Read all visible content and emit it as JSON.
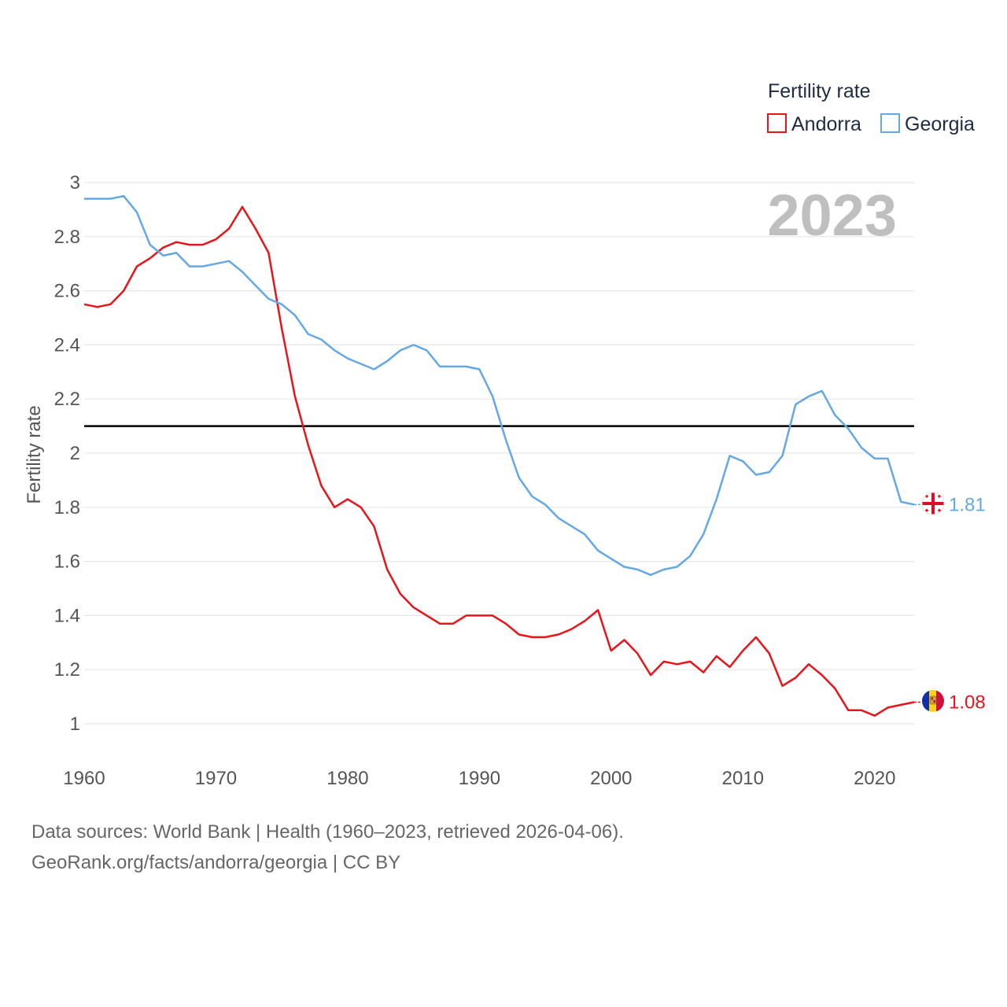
{
  "chart_data": {
    "type": "line",
    "ylabel": "Fertility rate",
    "xlabel": "",
    "xlim": [
      1960,
      2023
    ],
    "ylim": [
      0.9,
      3
    ],
    "x_ticks": [
      1960,
      1970,
      1980,
      1990,
      2000,
      2010,
      2020
    ],
    "y_ticks": [
      1,
      1.2,
      1.4,
      1.6,
      1.8,
      2,
      2.2,
      2.4,
      2.6,
      2.8,
      3
    ],
    "x_tick_labels": [
      "1960",
      "1970",
      "1980",
      "1990",
      "2000",
      "2010",
      "2020"
    ],
    "y_tick_labels": [
      "1",
      "1.2",
      "1.4",
      "1.6",
      "1.8",
      "2",
      "2.2",
      "2.4",
      "2.6",
      "2.8",
      "3"
    ],
    "reference_line": 2.1,
    "year_label": "2023",
    "legend": {
      "title": "Fertility rate",
      "position": "top-right"
    },
    "x": [
      1960,
      1961,
      1962,
      1963,
      1964,
      1965,
      1966,
      1967,
      1968,
      1969,
      1970,
      1971,
      1972,
      1973,
      1974,
      1975,
      1976,
      1977,
      1978,
      1979,
      1980,
      1981,
      1982,
      1983,
      1984,
      1985,
      1986,
      1987,
      1988,
      1989,
      1990,
      1991,
      1992,
      1993,
      1994,
      1995,
      1996,
      1997,
      1998,
      1999,
      2000,
      2001,
      2002,
      2003,
      2004,
      2005,
      2006,
      2007,
      2008,
      2009,
      2010,
      2011,
      2012,
      2013,
      2014,
      2015,
      2016,
      2017,
      2018,
      2019,
      2020,
      2021,
      2022,
      2023
    ],
    "series": [
      {
        "name": "Andorra",
        "color": "#e8141a",
        "end_label": "1.08",
        "values": [
          2.55,
          2.54,
          2.55,
          2.6,
          2.69,
          2.72,
          2.76,
          2.78,
          2.77,
          2.77,
          2.79,
          2.83,
          2.91,
          2.83,
          2.74,
          2.46,
          2.21,
          2.03,
          1.88,
          1.8,
          1.83,
          1.8,
          1.73,
          1.57,
          1.48,
          1.43,
          1.4,
          1.37,
          1.37,
          1.4,
          1.4,
          1.4,
          1.37,
          1.33,
          1.32,
          1.32,
          1.33,
          1.35,
          1.38,
          1.42,
          1.27,
          1.31,
          1.26,
          1.18,
          1.23,
          1.22,
          1.23,
          1.19,
          1.25,
          1.21,
          1.27,
          1.32,
          1.26,
          1.14,
          1.17,
          1.22,
          1.18,
          1.13,
          1.05,
          1.05,
          1.03,
          1.06,
          1.07,
          1.08
        ]
      },
      {
        "name": "Georgia",
        "color": "#64a8e6",
        "end_label": "1.81",
        "values": [
          2.94,
          2.94,
          2.94,
          2.95,
          2.89,
          2.77,
          2.73,
          2.74,
          2.69,
          2.69,
          2.7,
          2.71,
          2.67,
          2.62,
          2.57,
          2.55,
          2.51,
          2.44,
          2.42,
          2.38,
          2.35,
          2.33,
          2.31,
          2.34,
          2.38,
          2.4,
          2.38,
          2.32,
          2.32,
          2.32,
          2.31,
          2.21,
          2.05,
          1.91,
          1.84,
          1.81,
          1.76,
          1.73,
          1.7,
          1.64,
          1.61,
          1.58,
          1.57,
          1.55,
          1.57,
          1.58,
          1.62,
          1.7,
          1.83,
          1.99,
          1.97,
          1.92,
          1.93,
          1.99,
          2.18,
          2.21,
          2.23,
          2.14,
          2.09,
          2.02,
          1.98,
          1.98,
          1.82,
          1.81
        ]
      }
    ]
  },
  "footer": {
    "line1": "Data sources: World Bank | Health (1960–2023, retrieved 2026-04-06).",
    "line2": "GeoRank.org/facts/andorra/georgia | CC BY"
  },
  "icons": {
    "andorra": "andorra-flag-icon",
    "georgia": "georgia-flag-icon"
  }
}
